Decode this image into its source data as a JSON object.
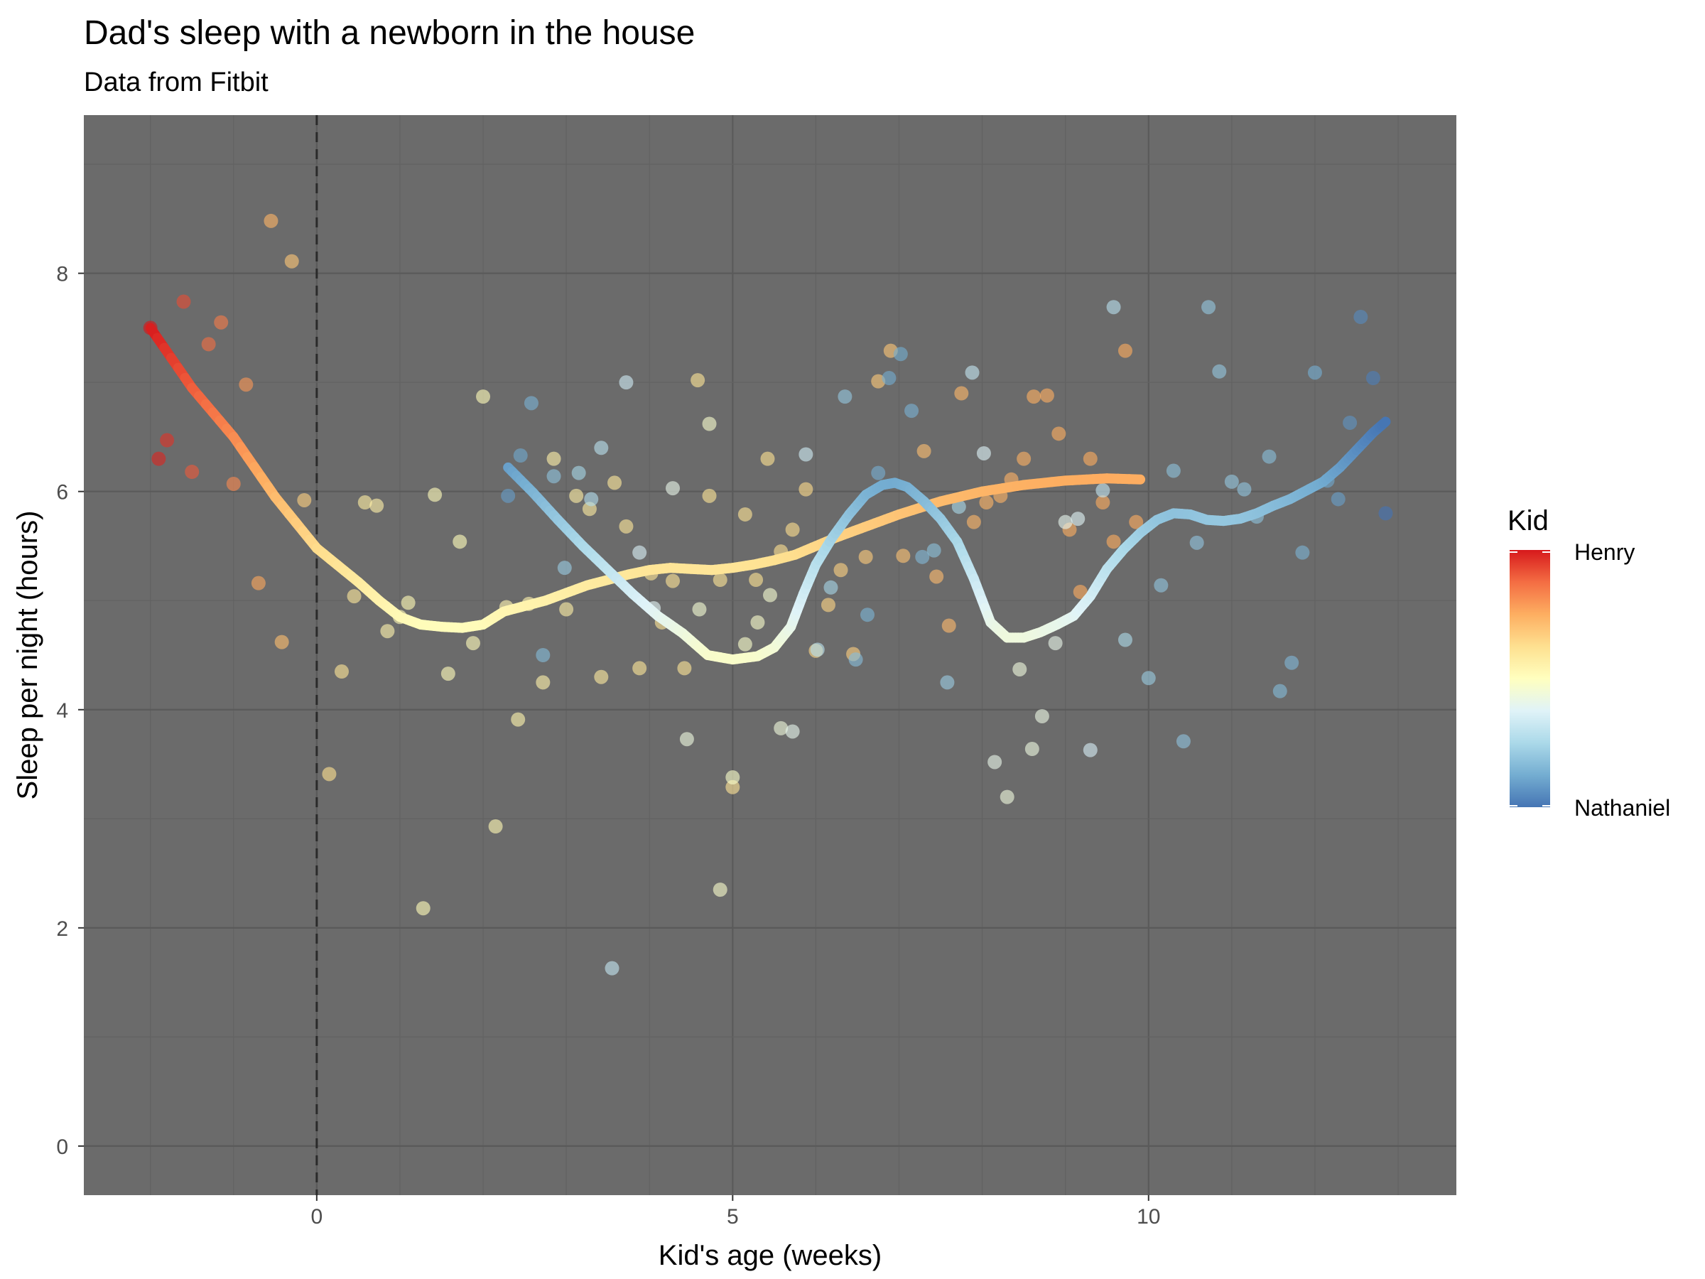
{
  "chart_data": {
    "type": "scatter",
    "title": "Dad's sleep with a newborn in the house",
    "subtitle": "Data from Fitbit",
    "xlabel": "Kid's age (weeks)",
    "ylabel": "Sleep per night (hours)",
    "xlim": [
      -2.8,
      13.7
    ],
    "ylim": [
      -0.45,
      9.45
    ],
    "x_ticks": [
      0,
      5,
      10
    ],
    "y_ticks": [
      0,
      2,
      4,
      6,
      8
    ],
    "grid": true,
    "reference_line": {
      "x": 0,
      "style": "dashed"
    },
    "legend": {
      "title": "Kid",
      "placement": "right",
      "type": "colorbar",
      "labels": [
        "Henry",
        "Nathaniel"
      ],
      "colors": [
        "#d7191c",
        "#f46d43",
        "#fdae61",
        "#fee090",
        "#ffffbf",
        "#e0f3f8",
        "#abd9e9",
        "#74add1",
        "#4575b4"
      ]
    },
    "colors": {
      "panel_background": "#6b6b6b",
      "grid_major": "#5a5a5a",
      "grid_minor": "#626262",
      "reference_line": "#2a2a2a"
    },
    "series": [
      {
        "name": "Henry",
        "color_key": 0.72,
        "points": [
          [
            -2.0,
            7.5
          ],
          [
            -1.9,
            6.3
          ],
          [
            -1.8,
            6.47
          ],
          [
            -1.6,
            7.74
          ],
          [
            -1.5,
            6.18
          ],
          [
            -1.3,
            7.35
          ],
          [
            -1.15,
            7.55
          ],
          [
            -1.0,
            6.07
          ],
          [
            -0.85,
            6.98
          ],
          [
            -0.7,
            5.16
          ],
          [
            -0.55,
            8.48
          ],
          [
            -0.42,
            4.62
          ],
          [
            -0.3,
            8.11
          ],
          [
            -0.15,
            5.92
          ],
          [
            0.15,
            3.41
          ],
          [
            0.3,
            4.35
          ],
          [
            0.45,
            5.04
          ],
          [
            0.58,
            5.9
          ],
          [
            0.72,
            5.87
          ],
          [
            0.85,
            4.72
          ],
          [
            1.0,
            4.85
          ],
          [
            1.1,
            4.98
          ],
          [
            1.28,
            2.18
          ],
          [
            1.42,
            5.97
          ],
          [
            1.58,
            4.33
          ],
          [
            1.72,
            5.54
          ],
          [
            1.88,
            4.61
          ],
          [
            2.0,
            6.87
          ],
          [
            2.15,
            2.93
          ],
          [
            2.28,
            4.94
          ],
          [
            2.42,
            3.91
          ],
          [
            2.55,
            4.97
          ],
          [
            2.72,
            4.25
          ],
          [
            2.85,
            6.3
          ],
          [
            3.0,
            4.92
          ],
          [
            3.12,
            5.96
          ],
          [
            3.28,
            5.84
          ],
          [
            3.42,
            4.3
          ],
          [
            3.58,
            6.08
          ],
          [
            3.72,
            5.68
          ],
          [
            3.88,
            4.38
          ],
          [
            4.02,
            5.25
          ],
          [
            4.15,
            4.8
          ],
          [
            4.28,
            5.18
          ],
          [
            4.42,
            4.38
          ],
          [
            4.58,
            7.02
          ],
          [
            4.72,
            5.96
          ],
          [
            4.85,
            5.19
          ],
          [
            5.0,
            3.29
          ],
          [
            5.15,
            5.79
          ],
          [
            5.28,
            5.19
          ],
          [
            5.42,
            6.3
          ],
          [
            5.58,
            5.45
          ],
          [
            5.72,
            5.65
          ],
          [
            5.88,
            6.02
          ],
          [
            6.0,
            4.54
          ],
          [
            6.15,
            4.96
          ],
          [
            6.3,
            5.28
          ],
          [
            6.45,
            4.51
          ],
          [
            6.6,
            5.4
          ],
          [
            6.75,
            7.01
          ],
          [
            6.9,
            7.29
          ],
          [
            7.05,
            5.41
          ],
          [
            7.3,
            6.37
          ],
          [
            7.45,
            5.22
          ],
          [
            7.6,
            4.77
          ],
          [
            7.75,
            6.9
          ],
          [
            7.9,
            5.72
          ],
          [
            8.05,
            5.9
          ],
          [
            8.22,
            5.96
          ],
          [
            8.35,
            6.11
          ],
          [
            8.5,
            6.3
          ],
          [
            8.62,
            6.87
          ],
          [
            8.78,
            6.88
          ],
          [
            8.92,
            6.53
          ],
          [
            9.05,
            5.65
          ],
          [
            9.18,
            5.08
          ],
          [
            9.3,
            6.3
          ],
          [
            9.45,
            5.9
          ],
          [
            9.58,
            5.54
          ],
          [
            9.72,
            7.29
          ],
          [
            9.85,
            5.72
          ]
        ],
        "trend": [
          [
            -2.0,
            7.5
          ],
          [
            -1.5,
            6.95
          ],
          [
            -1.0,
            6.5
          ],
          [
            -0.5,
            5.95
          ],
          [
            0.0,
            5.48
          ],
          [
            0.5,
            5.17
          ],
          [
            0.75,
            5.0
          ],
          [
            1.0,
            4.85
          ],
          [
            1.25,
            4.78
          ],
          [
            1.5,
            4.76
          ],
          [
            1.75,
            4.75
          ],
          [
            2.0,
            4.78
          ],
          [
            2.25,
            4.9
          ],
          [
            2.5,
            4.95
          ],
          [
            2.75,
            5.0
          ],
          [
            3.0,
            5.07
          ],
          [
            3.25,
            5.14
          ],
          [
            3.5,
            5.19
          ],
          [
            3.75,
            5.24
          ],
          [
            4.0,
            5.28
          ],
          [
            4.25,
            5.3
          ],
          [
            4.5,
            5.29
          ],
          [
            4.75,
            5.28
          ],
          [
            5.0,
            5.3
          ],
          [
            5.25,
            5.33
          ],
          [
            5.5,
            5.37
          ],
          [
            5.75,
            5.42
          ],
          [
            6.0,
            5.5
          ],
          [
            6.25,
            5.58
          ],
          [
            6.5,
            5.65
          ],
          [
            6.75,
            5.72
          ],
          [
            7.0,
            5.79
          ],
          [
            7.5,
            5.91
          ],
          [
            8.0,
            6.0
          ],
          [
            8.5,
            6.06
          ],
          [
            9.0,
            6.1
          ],
          [
            9.5,
            6.12
          ],
          [
            9.9,
            6.11
          ]
        ]
      },
      {
        "name": "Nathaniel",
        "color_key": 0.15,
        "points": [
          [
            2.3,
            5.96
          ],
          [
            2.45,
            6.33
          ],
          [
            2.58,
            6.81
          ],
          [
            2.72,
            4.5
          ],
          [
            2.85,
            6.14
          ],
          [
            2.98,
            5.3
          ],
          [
            3.15,
            6.17
          ],
          [
            3.3,
            5.93
          ],
          [
            3.42,
            6.4
          ],
          [
            3.55,
            1.63
          ],
          [
            3.72,
            7.0
          ],
          [
            3.88,
            5.44
          ],
          [
            4.05,
            4.93
          ],
          [
            4.28,
            6.03
          ],
          [
            4.45,
            3.73
          ],
          [
            4.6,
            4.92
          ],
          [
            4.72,
            6.62
          ],
          [
            4.85,
            2.35
          ],
          [
            5.0,
            3.38
          ],
          [
            5.15,
            4.6
          ],
          [
            5.3,
            4.8
          ],
          [
            5.45,
            5.05
          ],
          [
            5.58,
            3.83
          ],
          [
            5.72,
            3.8
          ],
          [
            5.88,
            6.34
          ],
          [
            6.02,
            4.55
          ],
          [
            6.18,
            5.12
          ],
          [
            6.35,
            6.87
          ],
          [
            6.48,
            4.46
          ],
          [
            6.62,
            4.87
          ],
          [
            6.75,
            6.17
          ],
          [
            6.88,
            7.04
          ],
          [
            7.02,
            7.26
          ],
          [
            7.15,
            6.74
          ],
          [
            7.28,
            5.4
          ],
          [
            7.42,
            5.46
          ],
          [
            7.58,
            4.25
          ],
          [
            7.72,
            5.86
          ],
          [
            7.88,
            7.09
          ],
          [
            8.02,
            6.35
          ],
          [
            8.15,
            3.52
          ],
          [
            8.3,
            3.2
          ],
          [
            8.45,
            4.37
          ],
          [
            8.6,
            3.64
          ],
          [
            8.72,
            3.94
          ],
          [
            8.88,
            4.61
          ],
          [
            9.0,
            5.72
          ],
          [
            9.15,
            5.75
          ],
          [
            9.3,
            3.63
          ],
          [
            9.45,
            6.01
          ],
          [
            9.58,
            7.69
          ],
          [
            9.72,
            4.64
          ],
          [
            10.0,
            4.29
          ],
          [
            10.15,
            5.14
          ],
          [
            10.3,
            6.19
          ],
          [
            10.42,
            3.71
          ],
          [
            10.58,
            5.53
          ],
          [
            10.72,
            7.69
          ],
          [
            10.85,
            7.1
          ],
          [
            11.0,
            6.09
          ],
          [
            11.15,
            6.02
          ],
          [
            11.3,
            5.77
          ],
          [
            11.45,
            6.32
          ],
          [
            11.58,
            4.17
          ],
          [
            11.72,
            4.43
          ],
          [
            11.85,
            5.44
          ],
          [
            12.0,
            7.09
          ],
          [
            12.15,
            6.1
          ],
          [
            12.28,
            5.93
          ],
          [
            12.42,
            6.63
          ],
          [
            12.55,
            7.6
          ],
          [
            12.7,
            7.04
          ],
          [
            12.85,
            5.8
          ]
        ],
        "trend": [
          [
            2.3,
            6.22
          ],
          [
            2.6,
            5.99
          ],
          [
            2.9,
            5.74
          ],
          [
            3.2,
            5.5
          ],
          [
            3.5,
            5.28
          ],
          [
            3.8,
            5.06
          ],
          [
            4.1,
            4.86
          ],
          [
            4.4,
            4.7
          ],
          [
            4.7,
            4.5
          ],
          [
            5.0,
            4.46
          ],
          [
            5.3,
            4.49
          ],
          [
            5.5,
            4.57
          ],
          [
            5.7,
            4.76
          ],
          [
            5.85,
            5.06
          ],
          [
            6.0,
            5.33
          ],
          [
            6.2,
            5.58
          ],
          [
            6.4,
            5.79
          ],
          [
            6.6,
            5.97
          ],
          [
            6.8,
            6.06
          ],
          [
            6.95,
            6.08
          ],
          [
            7.1,
            6.04
          ],
          [
            7.3,
            5.91
          ],
          [
            7.5,
            5.75
          ],
          [
            7.7,
            5.54
          ],
          [
            7.9,
            5.2
          ],
          [
            8.1,
            4.8
          ],
          [
            8.3,
            4.66
          ],
          [
            8.5,
            4.66
          ],
          [
            8.7,
            4.71
          ],
          [
            8.9,
            4.78
          ],
          [
            9.1,
            4.86
          ],
          [
            9.3,
            5.04
          ],
          [
            9.5,
            5.29
          ],
          [
            9.7,
            5.47
          ],
          [
            9.9,
            5.62
          ],
          [
            10.1,
            5.74
          ],
          [
            10.3,
            5.8
          ],
          [
            10.5,
            5.79
          ],
          [
            10.7,
            5.74
          ],
          [
            10.9,
            5.73
          ],
          [
            11.1,
            5.75
          ],
          [
            11.3,
            5.8
          ],
          [
            11.5,
            5.87
          ],
          [
            11.7,
            5.93
          ],
          [
            11.9,
            6.01
          ],
          [
            12.1,
            6.09
          ],
          [
            12.3,
            6.22
          ],
          [
            12.5,
            6.38
          ],
          [
            12.7,
            6.54
          ],
          [
            12.85,
            6.64
          ]
        ]
      }
    ]
  }
}
